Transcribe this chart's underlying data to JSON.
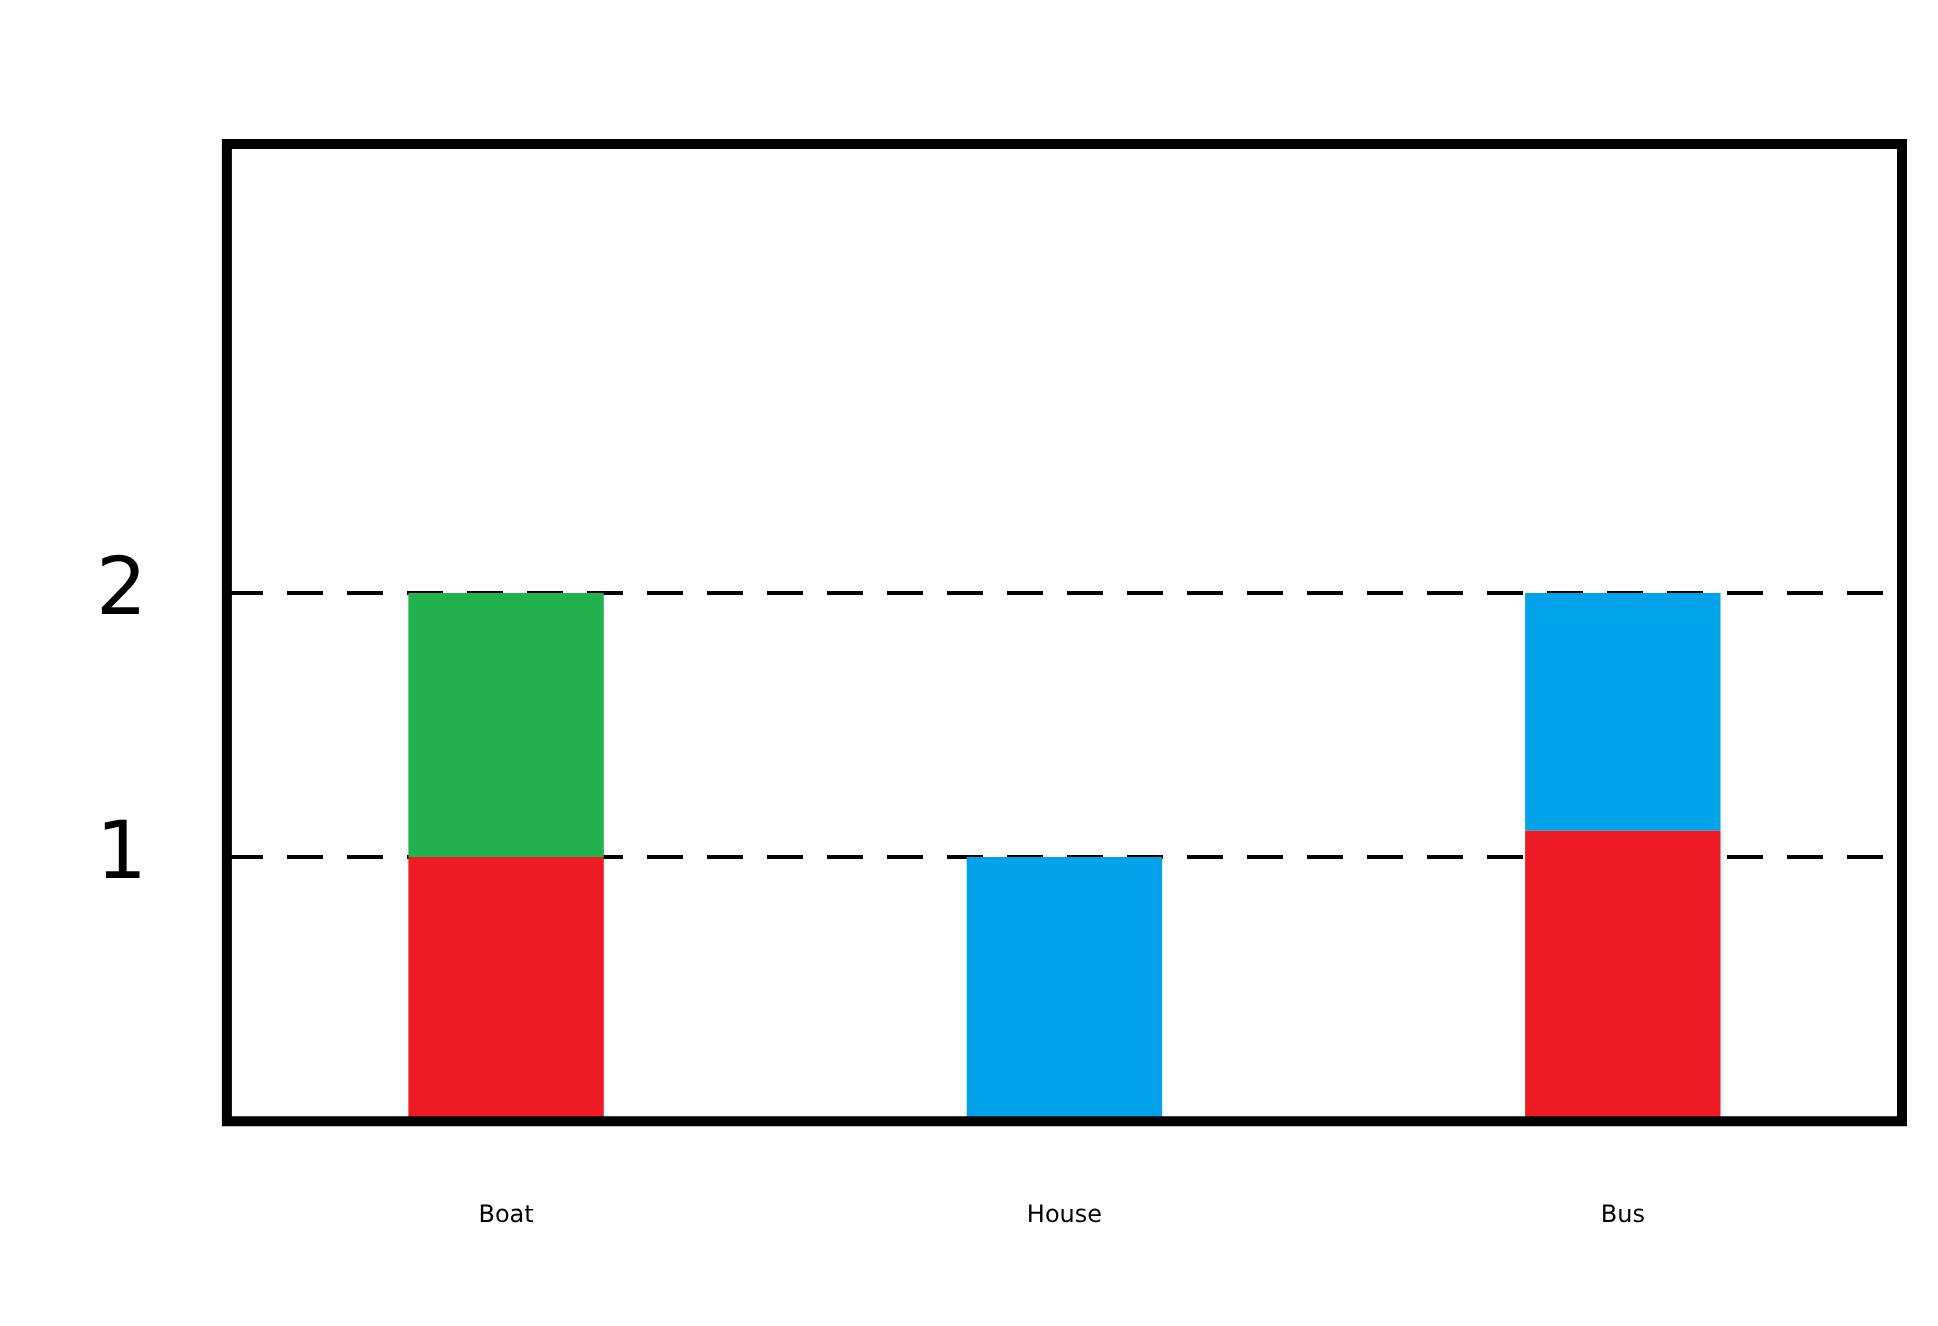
{
  "chart_data": {
    "type": "bar",
    "stacked": true,
    "categories": [
      "Boat",
      "House",
      "Bus"
    ],
    "series": [
      {
        "color": "#ed1c24",
        "values": [
          1,
          null,
          1.1
        ]
      },
      {
        "color": "#22b14c",
        "values": [
          1,
          null,
          null
        ]
      },
      {
        "color": "#00a2e8",
        "values": [
          null,
          1,
          0.9
        ]
      }
    ],
    "ylim": [
      0,
      3.7
    ],
    "yticks": [
      1,
      2
    ],
    "grid": "y",
    "legend": false
  }
}
